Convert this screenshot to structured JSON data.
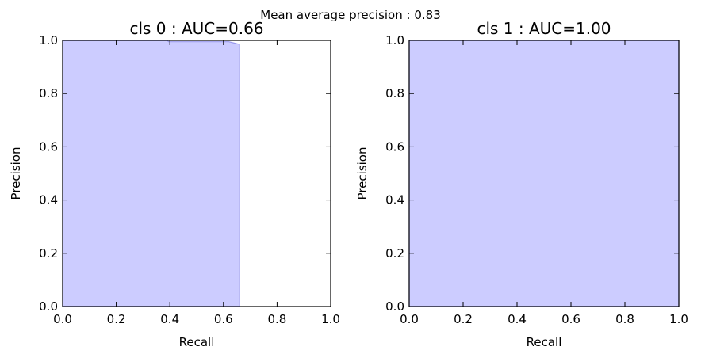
{
  "figure": {
    "suptitle": "Mean average precision : 0.83"
  },
  "chart_data": [
    {
      "type": "area",
      "title": "cls 0 : AUC=0.66",
      "xlabel": "Recall",
      "ylabel": "Precision",
      "xlim": [
        0.0,
        1.0
      ],
      "ylim": [
        0.0,
        1.0
      ],
      "xticks": [
        "0.0",
        "0.2",
        "0.4",
        "0.6",
        "0.8",
        "1.0"
      ],
      "yticks": [
        "0.0",
        "0.2",
        "0.4",
        "0.6",
        "0.8",
        "1.0"
      ],
      "grid": false,
      "series": [
        {
          "x": [
            0.0,
            0.39,
            0.395,
            0.62,
            0.64,
            0.66,
            0.66
          ],
          "y": [
            1.0,
            1.0,
            0.995,
            0.995,
            0.99,
            0.985,
            0.0
          ]
        }
      ],
      "colors": {
        "fill": "#ccccff",
        "line": "#9999ee"
      }
    },
    {
      "type": "area",
      "title": "cls 1 : AUC=1.00",
      "xlabel": "Recall",
      "ylabel": "Precision",
      "xlim": [
        0.0,
        1.0
      ],
      "ylim": [
        0.0,
        1.0
      ],
      "xticks": [
        "0.0",
        "0.2",
        "0.4",
        "0.6",
        "0.8",
        "1.0"
      ],
      "yticks": [
        "0.0",
        "0.2",
        "0.4",
        "0.6",
        "0.8",
        "1.0"
      ],
      "grid": false,
      "series": [
        {
          "x": [
            0.0,
            1.0
          ],
          "y": [
            1.0,
            1.0
          ]
        }
      ],
      "colors": {
        "fill": "#ccccff",
        "line": "#9999ee"
      }
    }
  ]
}
